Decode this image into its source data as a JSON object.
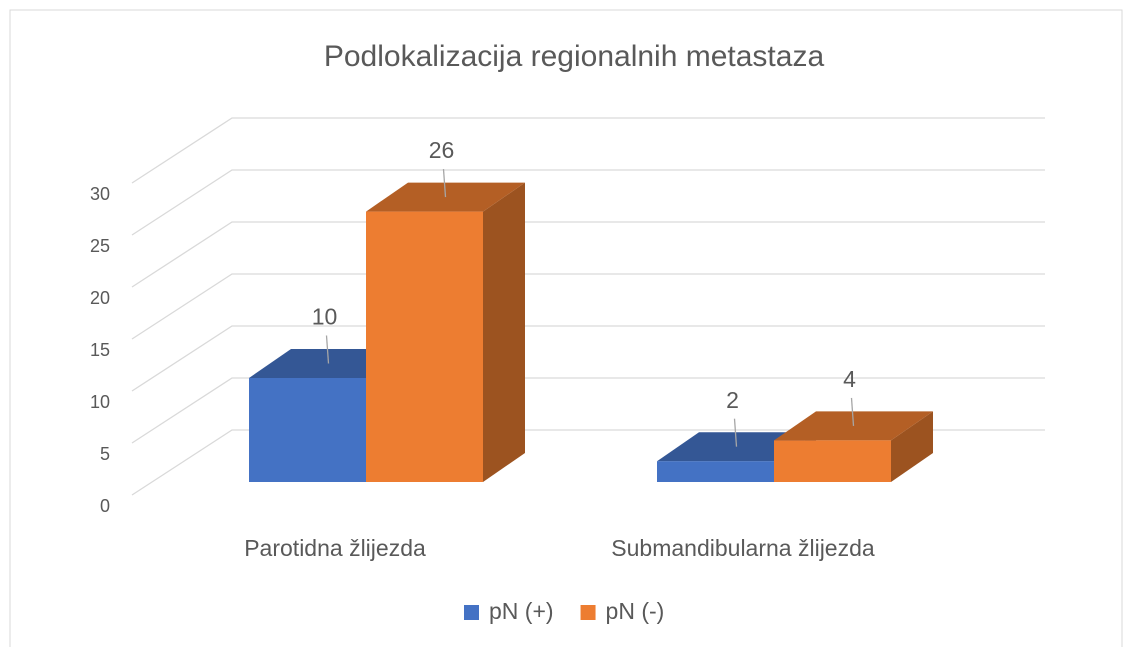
{
  "chart_data": {
    "type": "bar3d",
    "title": "Podlokalizacija regionalnih metastaza",
    "categories": [
      "Parotidna žlijezda",
      "Submandibularna žlijezda"
    ],
    "series": [
      {
        "name": "pN (+)",
        "color": "#4472c4",
        "values": [
          10,
          2
        ]
      },
      {
        "name": "pN (-)",
        "color": "#ed7d31",
        "values": [
          26,
          4
        ]
      }
    ],
    "ylim": [
      0,
      30
    ],
    "yticks": [
      0,
      5,
      10,
      15,
      20,
      25,
      30
    ],
    "grid": true,
    "legend": "bottom"
  }
}
